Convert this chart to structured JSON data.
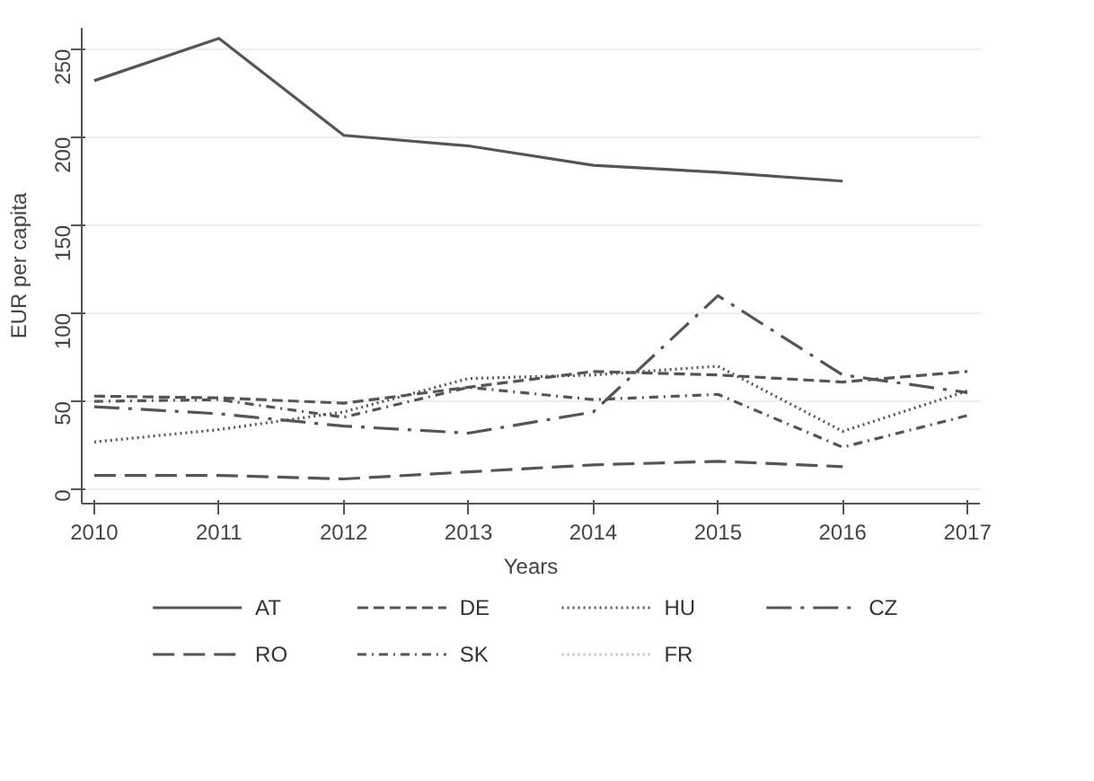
{
  "chart_data": {
    "type": "line",
    "xlabel": "Years",
    "ylabel": "EUR per capita",
    "x": [
      2010,
      2011,
      2012,
      2013,
      2014,
      2015,
      2016,
      2017
    ],
    "xlim": [
      2009.9,
      2017.1
    ],
    "xticks": [
      2010,
      2011,
      2012,
      2013,
      2014,
      2015,
      2016,
      2017
    ],
    "ylim": [
      -8,
      262
    ],
    "yticks": [
      0,
      50,
      100,
      150,
      200,
      250
    ],
    "grid": "y",
    "legend": "bottom",
    "marker": "none",
    "series": [
      {
        "name": "AT",
        "color": "#555555",
        "line_style": "solid",
        "values": [
          232,
          256,
          201,
          195,
          184,
          180,
          175,
          null
        ]
      },
      {
        "name": "DE",
        "color": "#555555",
        "line_style": "dashed",
        "values": [
          53,
          52,
          49,
          58,
          67,
          65,
          61,
          67
        ]
      },
      {
        "name": "HU",
        "color": "#555555",
        "line_style": "dotted",
        "values": [
          27,
          34,
          44,
          63,
          65,
          70,
          33,
          56
        ]
      },
      {
        "name": "CZ",
        "color": "#555555",
        "line_style": "longdashdot",
        "values": [
          47,
          43,
          36,
          32,
          44,
          110,
          65,
          55
        ]
      },
      {
        "name": "RO",
        "color": "#555555",
        "line_style": "longdash",
        "values": [
          8,
          8,
          6,
          10,
          14,
          16,
          13,
          null
        ]
      },
      {
        "name": "SK",
        "color": "#555555",
        "line_style": "dashdot",
        "values": [
          50,
          51,
          41,
          58,
          51,
          54,
          24,
          42
        ]
      },
      {
        "name": "FR",
        "color": "#bbbbbb",
        "line_style": "dotted",
        "values": [
          null,
          null,
          null,
          null,
          null,
          null,
          null,
          null
        ]
      }
    ]
  }
}
